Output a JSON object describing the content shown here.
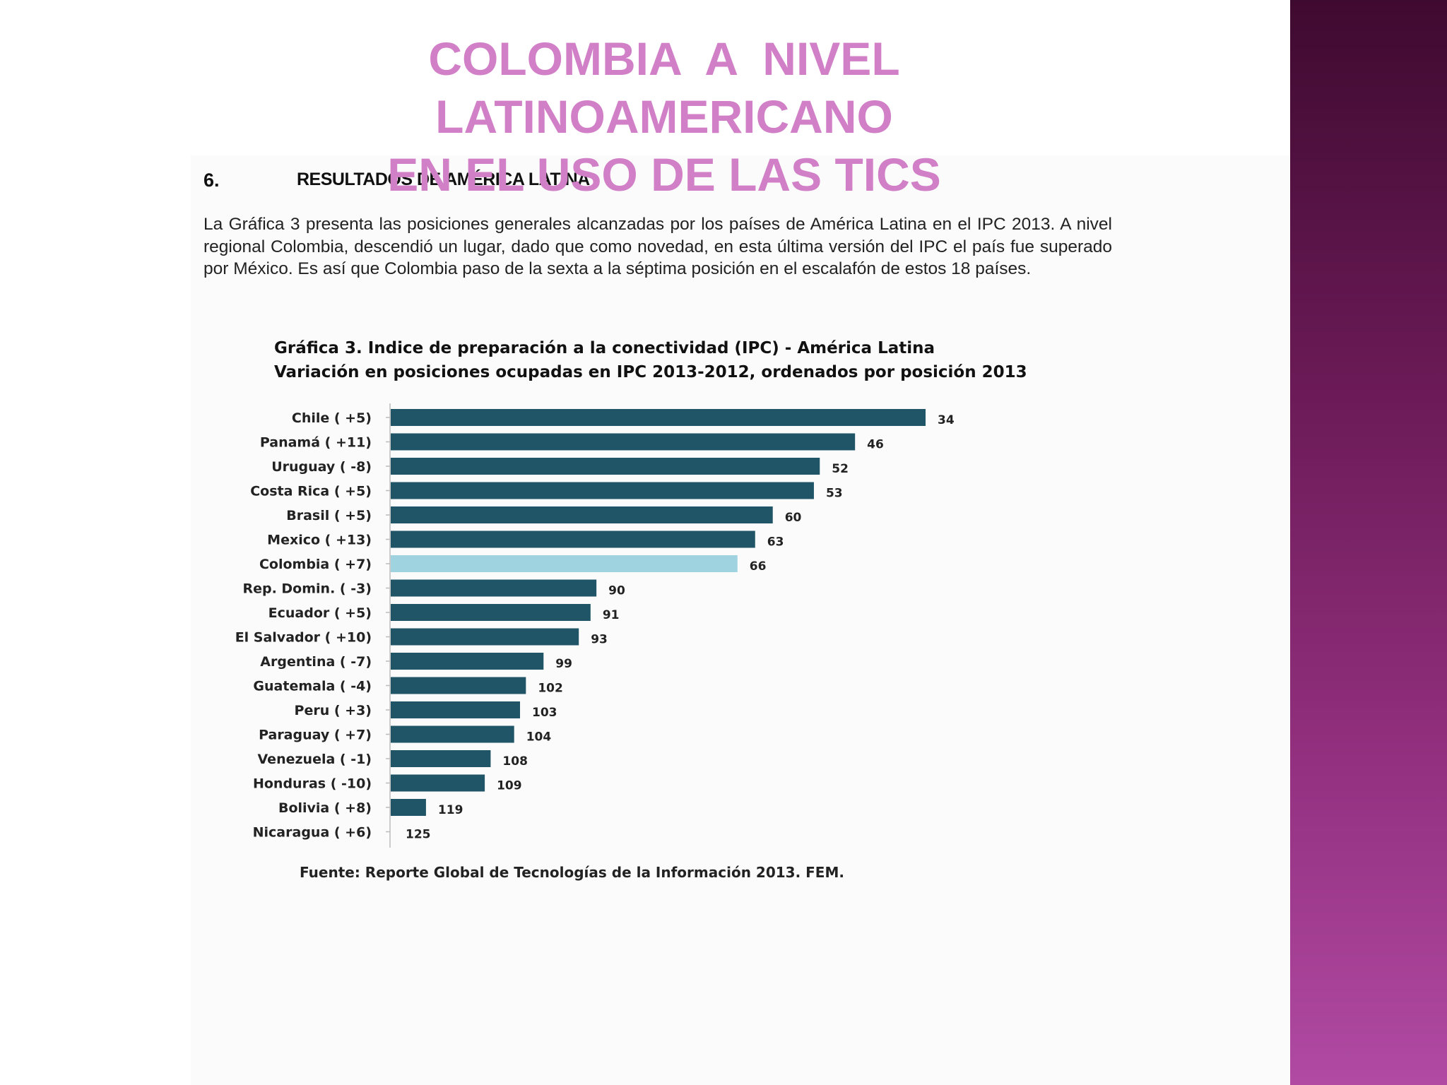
{
  "slide": {
    "title_lines": [
      "COLOMBIA  A  NIVEL",
      "LATINOAMERICANO",
      "EN EL USO DE LAS TICS"
    ]
  },
  "document": {
    "section_number": "6.",
    "section_title": "RESULTADOS DE AMÉRICA LATINA",
    "intro": "La Gráfica 3 presenta las posiciones generales alcanzadas por los países de América Latina en el IPC 2013. A nivel regional Colombia, descendió un lugar, dado que como novedad, en esta última versión del IPC el país fue superado por México. Es así que Colombia paso de la sexta a la séptima posición en el escalafón de estos 18 países.",
    "source": "Fuente: Reporte Global de Tecnologías de la Información 2013. FEM."
  },
  "colors": {
    "bar": "#1f5566",
    "highlight_bar": "#9fd3e0",
    "title": "#d17fc6",
    "side_band": "#7a2268"
  },
  "chart_data": {
    "type": "bar",
    "orientation": "horizontal",
    "title": "Gráfica 3. Indice de preparación a la conectividad  (IPC) - América Latina",
    "subtitle": "Variación en posiciones ocupadas  en IPC 2013-2012, ordenados por posición 2013",
    "value_meaning": "posición 2013",
    "highlight": "Colombia ( +7)",
    "categories": [
      "Chile ( +5)",
      "Panamá ( +11)",
      "Uruguay ( -8)",
      "Costa Rica ( +5)",
      "Brasil ( +5)",
      "Mexico ( +13)",
      "Colombia ( +7)",
      "Rep. Domin. ( -3)",
      "Ecuador ( +5)",
      "El Salvador ( +10)",
      "Argentina ( -7)",
      "Guatemala ( -4)",
      "Peru ( +3)",
      "Paraguay ( +7)",
      "Venezuela ( -1)",
      "Honduras ( -10)",
      "Bolivia ( +8)",
      "Nicaragua ( +6)"
    ],
    "values": [
      34,
      46,
      52,
      53,
      60,
      63,
      66,
      90,
      91,
      93,
      99,
      102,
      103,
      104,
      108,
      109,
      119,
      125
    ],
    "bar_length_basis": "bar length decreases with rank; rank 125 has zero length",
    "grid": false,
    "legend": "none"
  }
}
